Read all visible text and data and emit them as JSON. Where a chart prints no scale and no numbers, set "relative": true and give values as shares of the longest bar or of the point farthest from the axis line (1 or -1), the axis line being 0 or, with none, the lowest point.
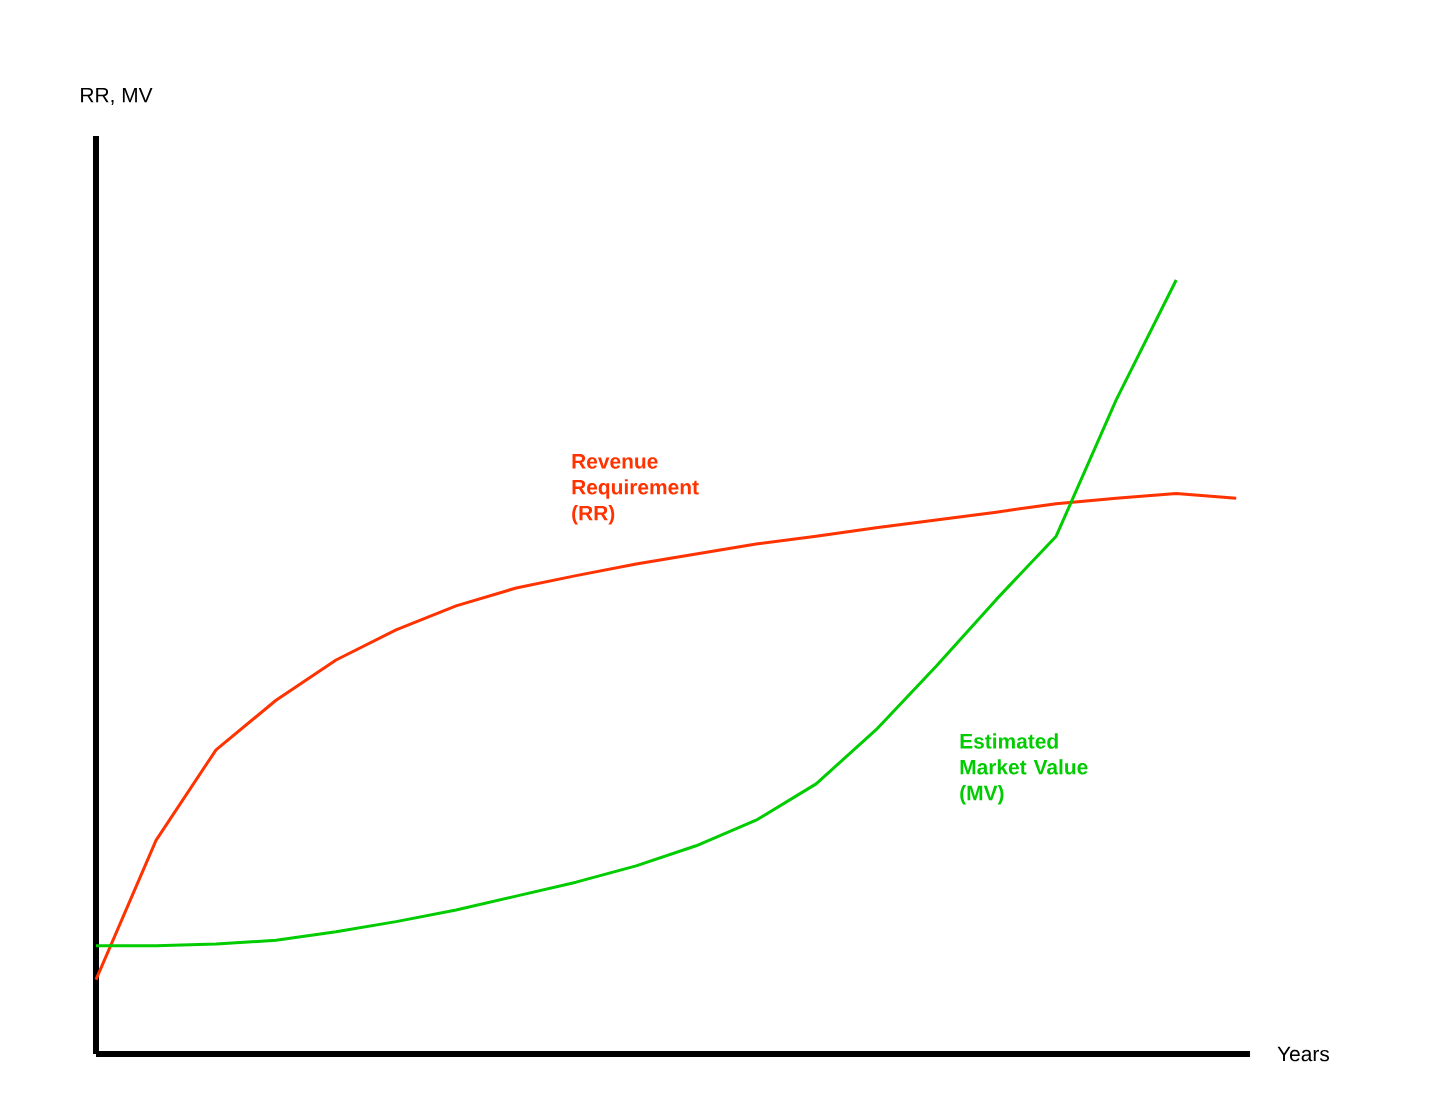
{
  "chart_data": {
    "type": "line",
    "relative": true,
    "xlabel": "Years",
    "annotations": [
      "RR, MV"
    ],
    "categories": [
      null,
      null,
      null,
      null,
      null,
      null,
      null,
      null,
      null,
      null,
      null,
      null,
      null,
      null,
      null,
      null,
      null,
      null,
      null,
      null
    ],
    "series": [
      {
        "name": "Revenue Requirement (RR)",
        "color": "#ff3300",
        "values": [
          0.096,
          0.276,
          0.393,
          0.457,
          0.509,
          0.548,
          0.579,
          0.602,
          0.618,
          0.633,
          0.646,
          0.659,
          0.669,
          0.68,
          0.69,
          0.7,
          0.711,
          0.718,
          0.724,
          0.718
        ]
      },
      {
        "name": "Estimated Market Value (MV)",
        "color": "#00cc00",
        "values": [
          0.14,
          0.14,
          0.142,
          0.147,
          0.158,
          0.171,
          0.186,
          0.204,
          0.222,
          0.243,
          0.269,
          0.302,
          0.349,
          0.419,
          0.501,
          0.587,
          0.669,
          0.845,
          1.0,
          null
        ]
      }
    ],
    "legend": false,
    "line_style": "solid",
    "marker": "none"
  }
}
